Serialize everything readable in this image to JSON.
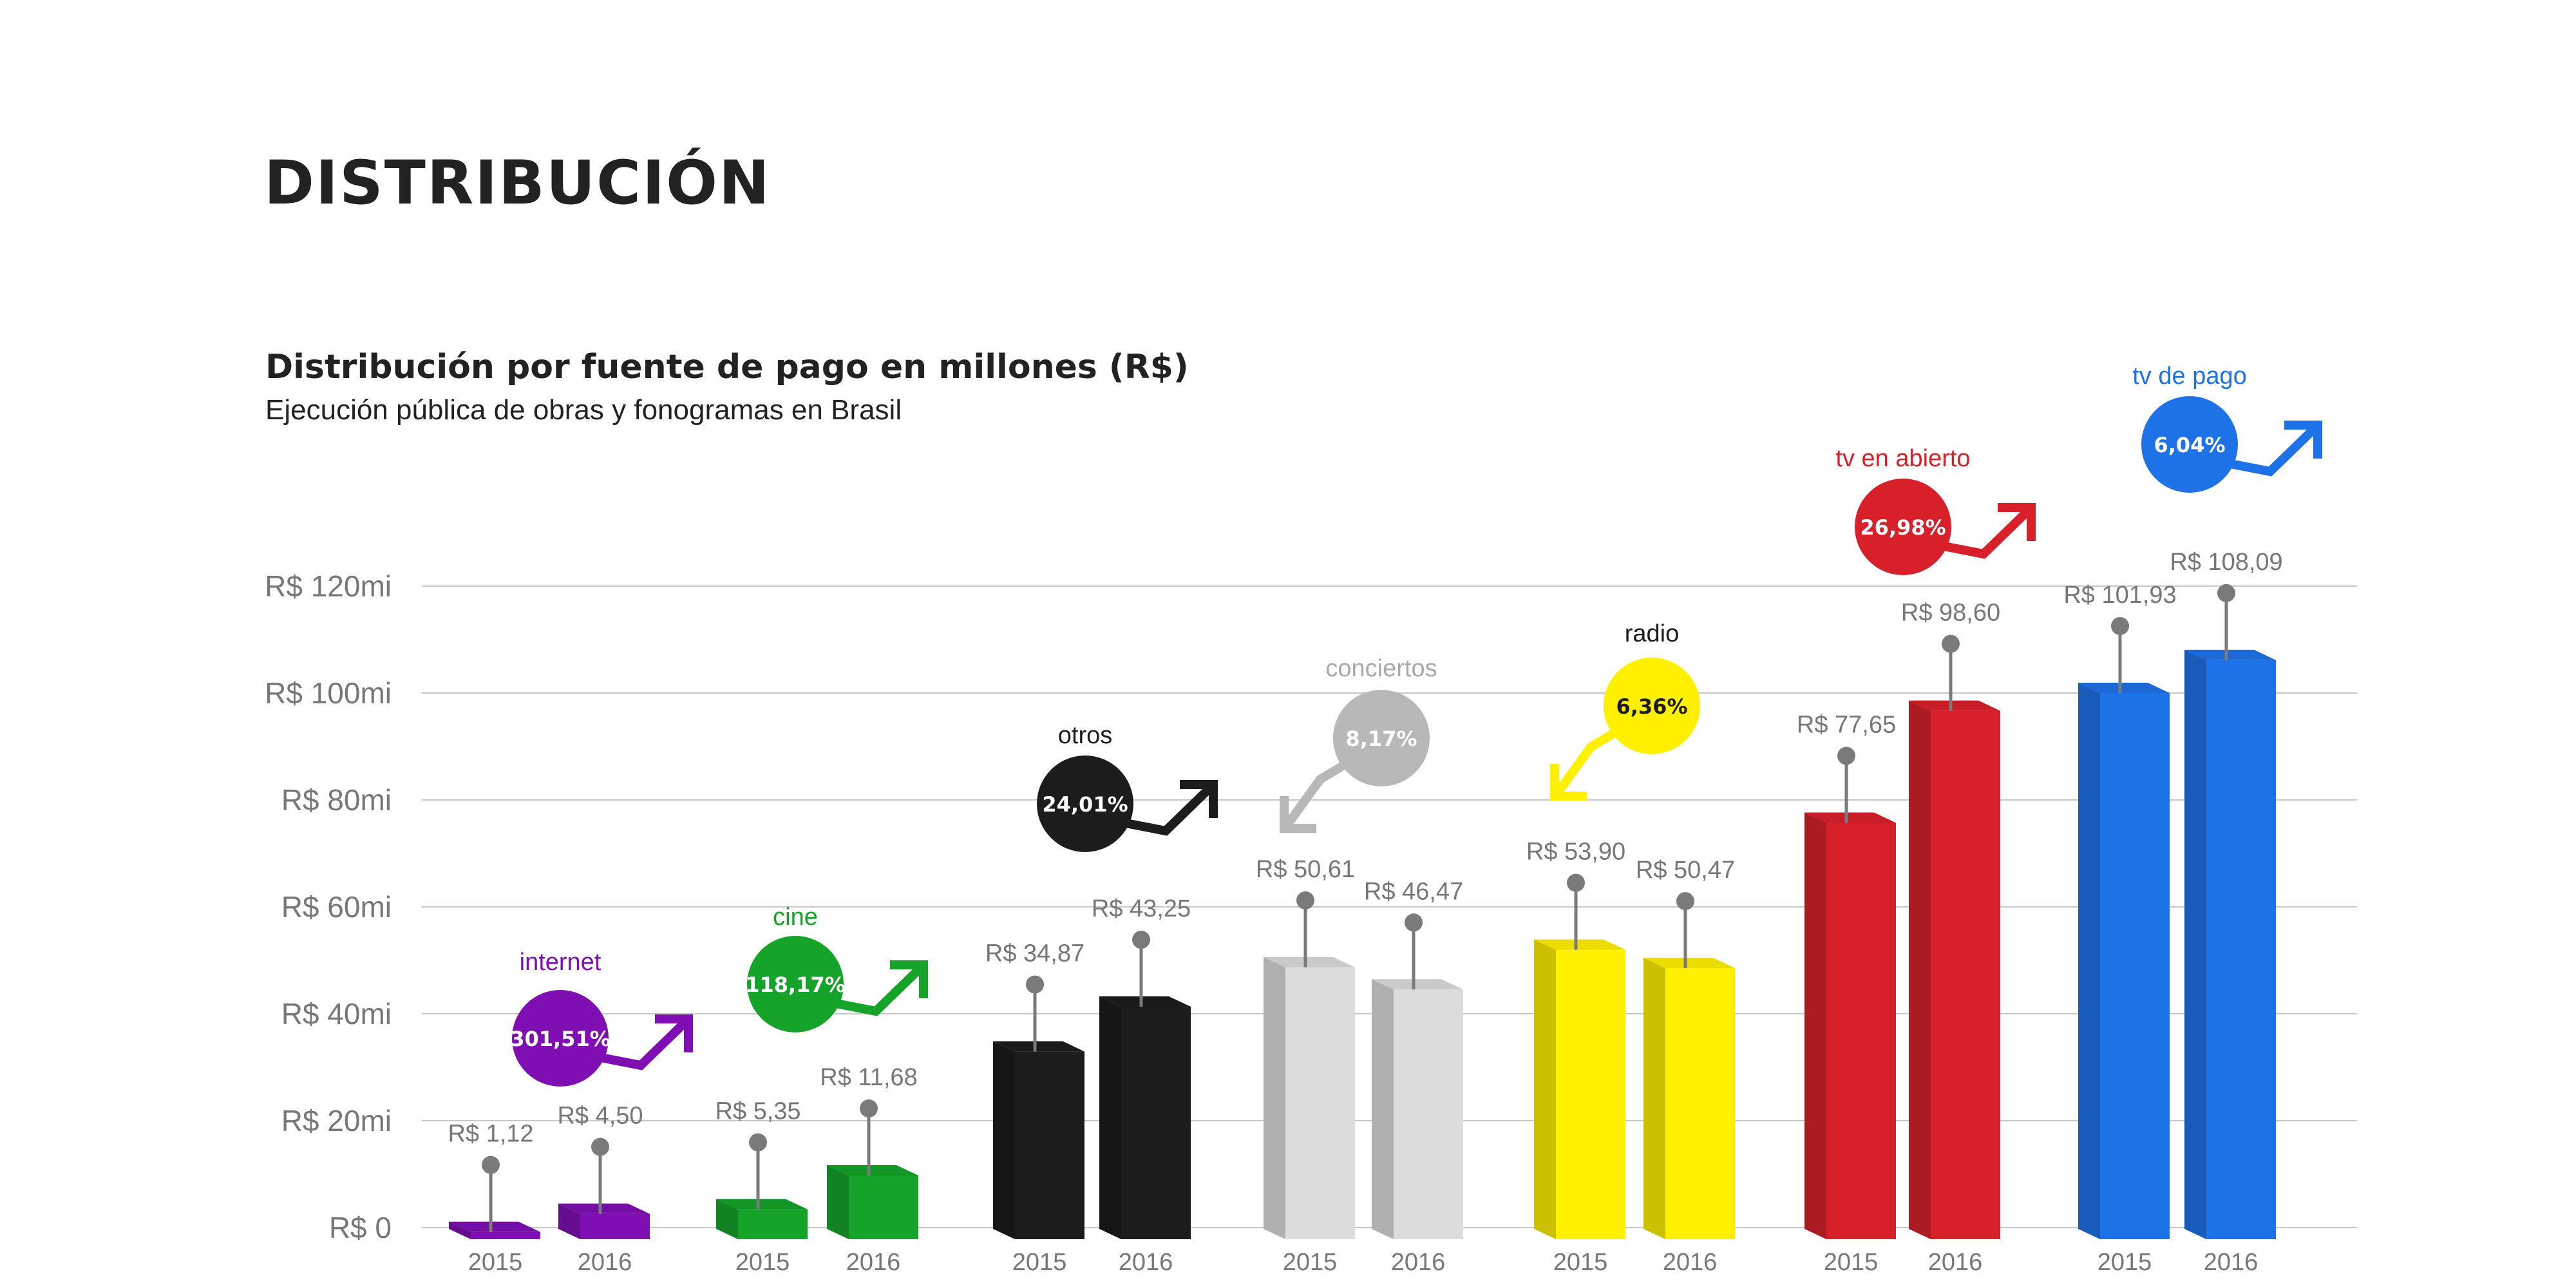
{
  "page": {
    "heading": "DISTRIBUCIÓN"
  },
  "chart_data": {
    "type": "bar",
    "title": "Distribución por fuente de pago en millones (R$)",
    "subtitle": "Ejecución pública de obras y fonogramas en Brasil",
    "xlabel": "",
    "ylabel": "",
    "ylim": [
      0,
      120
    ],
    "yticks": [
      0,
      20,
      40,
      60,
      80,
      100,
      120
    ],
    "ytick_labels": [
      "R$ 0",
      "R$ 20mi",
      "R$ 40mi",
      "R$ 60mi",
      "R$ 80mi",
      "R$ 100mi",
      "R$ 120mi"
    ],
    "grid": true,
    "series_labels": [
      "2015",
      "2016"
    ],
    "groups": [
      {
        "name": "internet",
        "color": "#7F0FB3",
        "label_color": "#7F0FB3",
        "values": [
          1.12,
          4.5
        ],
        "value_labels": [
          "R$ 1,12",
          "R$ 4,50"
        ],
        "change": "301,51%",
        "trend": "up"
      },
      {
        "name": "cine",
        "color": "#16A32A",
        "label_color": "#16A32A",
        "values": [
          5.35,
          11.68
        ],
        "value_labels": [
          "R$ 5,35",
          "R$ 11,68"
        ],
        "change": "118,17%",
        "trend": "up"
      },
      {
        "name": "otros",
        "color": "#1C1C1C",
        "label_color": "#1C1C1C",
        "values": [
          34.87,
          43.25
        ],
        "value_labels": [
          "R$ 34,87",
          "R$ 43,25"
        ],
        "change": "24,01%",
        "trend": "up"
      },
      {
        "name": "conciertos",
        "color": "#DCDCDC",
        "label_color": "#A9A9A9",
        "values": [
          50.61,
          46.47
        ],
        "value_labels": [
          "R$ 50,61",
          "R$ 46,47"
        ],
        "change": "8,17%",
        "trend": "down"
      },
      {
        "name": "radio",
        "color": "#FFF000",
        "label_color": "#1C1C1C",
        "values": [
          53.9,
          50.47
        ],
        "value_labels": [
          "R$ 53,90",
          "R$ 50,47"
        ],
        "change": "6,36%",
        "trend": "down"
      },
      {
        "name": "tv en abierto",
        "color": "#D7202A",
        "label_color": "#D7202A",
        "values": [
          77.65,
          98.6
        ],
        "value_labels": [
          "R$ 77,65",
          "R$ 98,60"
        ],
        "change": "26,98%",
        "trend": "up"
      },
      {
        "name": "tv de pago",
        "color": "#1E72E8",
        "label_color": "#1E72E8",
        "values": [
          101.93,
          108.09
        ],
        "value_labels": [
          "R$ 101,93",
          "R$ 108,09"
        ],
        "change": "6,04%",
        "trend": "up"
      }
    ]
  }
}
